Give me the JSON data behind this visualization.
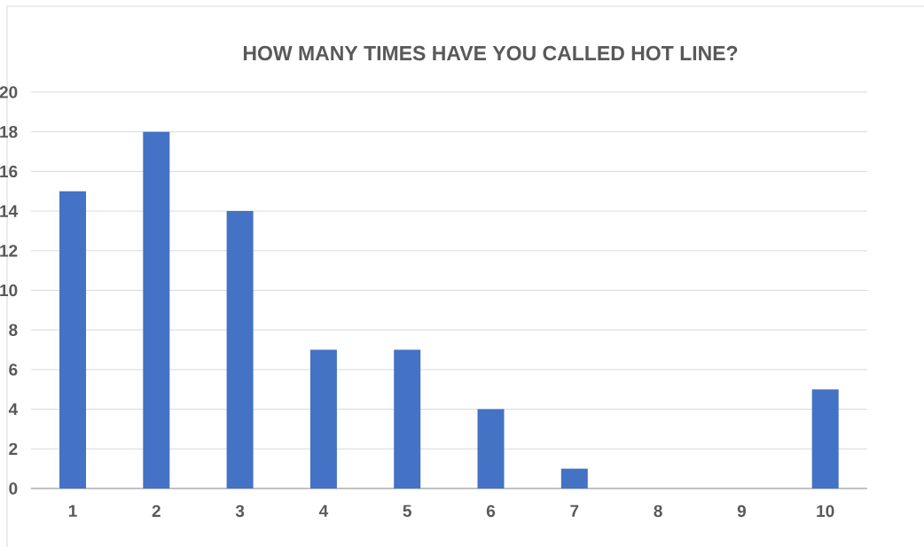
{
  "chart_data": {
    "type": "bar",
    "title": "HOW MANY TIMES HAVE YOU CALLED HOT LINE?",
    "categories": [
      "1",
      "2",
      "3",
      "4",
      "5",
      "6",
      "7",
      "8",
      "9",
      "10"
    ],
    "values": [
      15,
      18,
      14,
      7,
      7,
      4,
      1,
      0,
      0,
      5
    ],
    "color": "#4472c4",
    "ylim": [
      0,
      20
    ],
    "yticks": [
      0,
      2,
      4,
      6,
      8,
      10,
      12,
      14,
      16,
      18,
      20
    ],
    "grid": "y"
  }
}
